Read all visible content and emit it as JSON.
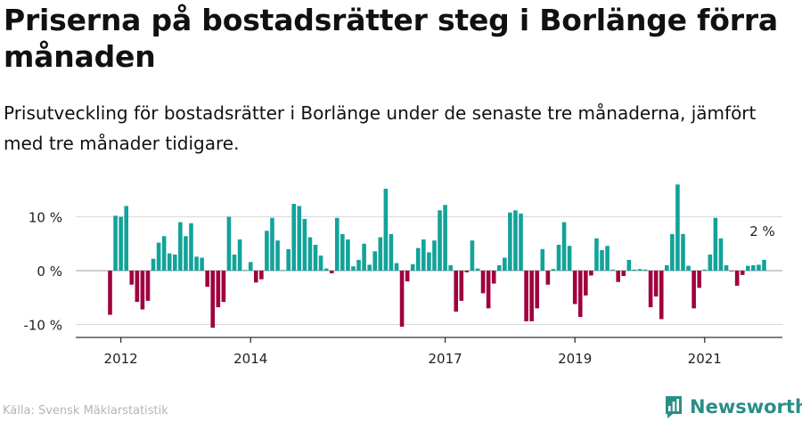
{
  "title": "Priserna på bostadsrätter steg i Borlänge förra månaden",
  "subtitle": "Prisutveckling för bostadsrätter i Borlänge under de senaste tre månaderna, jämfört med tre månader tidigare.",
  "source": "Källa: Svensk Mäklarstatistik",
  "brand": {
    "name": "Newsworthy",
    "icon": "newsworthy-bar-chart-icon"
  },
  "colors": {
    "positive": "#12a39a",
    "negative": "#a0003e",
    "grid": "#d9d9d9",
    "axis": "#333333"
  },
  "chart_data": {
    "type": "bar",
    "unit": "%",
    "ylim": [
      -12,
      17
    ],
    "yticks": [
      {
        "value": 10,
        "label": "10 %"
      },
      {
        "value": 0,
        "label": "0 %"
      },
      {
        "value": -10,
        "label": "-10 %"
      }
    ],
    "xticks": [
      {
        "index": 2,
        "label": "2012"
      },
      {
        "index": 26,
        "label": "2014"
      },
      {
        "index": 62,
        "label": "2017"
      },
      {
        "index": 86,
        "label": "2019"
      },
      {
        "index": 110,
        "label": "2021"
      }
    ],
    "annotation": {
      "index": 121,
      "label": "2 %"
    },
    "values": [
      -8.2,
      10.2,
      10,
      12,
      -2.6,
      -5.8,
      -7.2,
      -5.6,
      2.2,
      5.2,
      6.4,
      3.2,
      3,
      9,
      6.4,
      8.8,
      2.6,
      2.4,
      -3,
      -10.6,
      -6.8,
      -5.8,
      10,
      3,
      5.8,
      0.1,
      1.6,
      -2.2,
      -1.6,
      7.4,
      9.8,
      5.6,
      0.1,
      4,
      12.4,
      12,
      9.6,
      6.2,
      4.8,
      2.8,
      0.4,
      -0.5,
      9.8,
      6.8,
      5.8,
      0.8,
      2,
      5,
      1.1,
      3.6,
      6.2,
      15.2,
      6.8,
      1.4,
      -10.4,
      -2,
      1.2,
      4.2,
      5.8,
      3.4,
      5.6,
      11.2,
      12.2,
      1,
      -7.6,
      -5.6,
      -0.3,
      5.6,
      0.4,
      -4.2,
      -7,
      -2.4,
      1,
      2.4,
      10.8,
      11.2,
      10.6,
      -9.4,
      -9.4,
      -7,
      4,
      -2.6,
      0.3,
      4.8,
      9,
      4.6,
      -6.2,
      -8.6,
      -4.6,
      -0.9,
      6,
      3.8,
      4.6,
      0.2,
      -2.1,
      -1,
      2,
      0.2,
      0.3,
      0.2,
      -6.8,
      -4.8,
      -9,
      1,
      6.8,
      16,
      6.8,
      0.9,
      -7,
      -3.2,
      0.2,
      3,
      9.8,
      6,
      1,
      -0.1,
      -2.8,
      -0.8,
      0.9,
      1,
      1.1,
      2
    ]
  }
}
